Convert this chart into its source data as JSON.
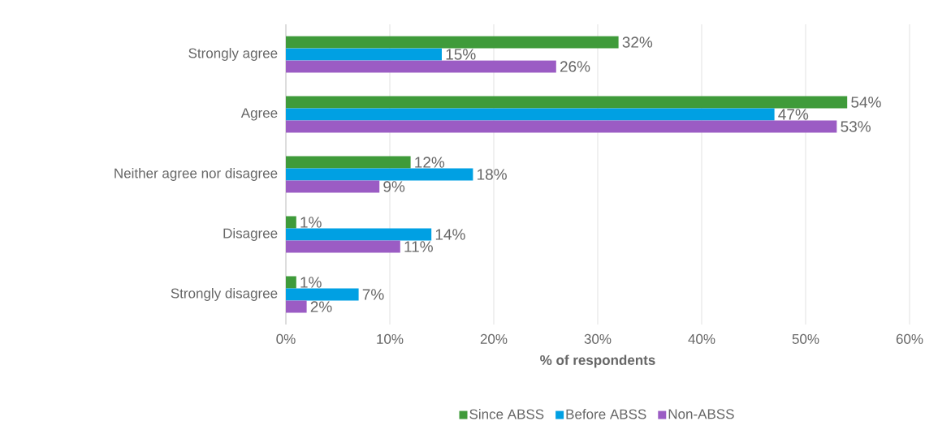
{
  "chart_data": {
    "type": "bar",
    "orientation": "horizontal",
    "xlabel": "% of respondents",
    "categories": [
      "Strongly agree",
      "Agree",
      "Neither agree nor disagree",
      "Disagree",
      "Strongly disagree"
    ],
    "series": [
      {
        "name": "Since ABSS",
        "color": "#3f9b3a",
        "values": [
          32,
          54,
          12,
          1,
          1
        ],
        "value_labels": [
          "32%",
          "54%",
          "12%",
          "1%",
          "1%"
        ]
      },
      {
        "name": "Before ABSS",
        "color": "#00a0e3",
        "values": [
          15,
          47,
          18,
          14,
          7
        ],
        "value_labels": [
          "15%",
          "47%",
          "18%",
          "14%",
          "7%"
        ]
      },
      {
        "name": "Non-ABSS",
        "color": "#9b5cc4",
        "values": [
          26,
          53,
          9,
          11,
          2
        ],
        "value_labels": [
          "26%",
          "53%",
          "9%",
          "11%",
          "2%"
        ]
      }
    ],
    "xlim": [
      0,
      60
    ],
    "xticks": [
      {
        "value": 0,
        "label": "0%"
      },
      {
        "value": 10,
        "label": "10%"
      },
      {
        "value": 20,
        "label": "20%"
      },
      {
        "value": 30,
        "label": "30%"
      },
      {
        "value": 40,
        "label": "40%"
      },
      {
        "value": 50,
        "label": "50%"
      },
      {
        "value": 60,
        "label": "60%"
      }
    ],
    "grid": "x",
    "legend": "bottom"
  }
}
